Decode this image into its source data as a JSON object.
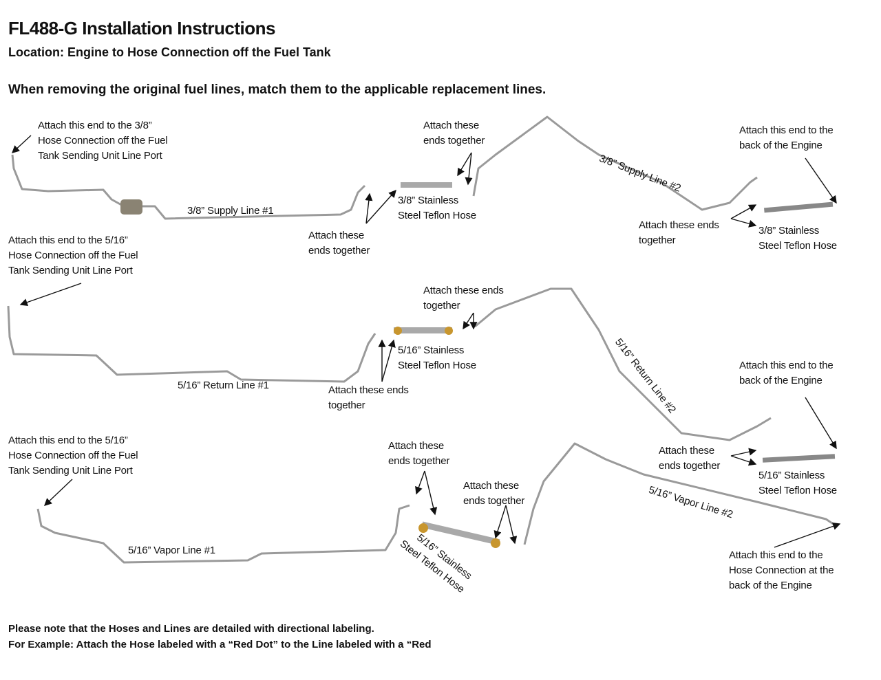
{
  "header": {
    "title": "FL488-G Installation Instructions",
    "location": "Location: Engine to Hose Connection off the Fuel Tank",
    "instruction": "When removing the original fuel lines, match them to the applicable replacement lines."
  },
  "supply": {
    "tank_end": [
      "Attach this end to the 3/8”",
      "Hose Connection off the Fuel",
      "Tank Sending Unit Line Port"
    ],
    "attach_top": [
      "Attach these",
      "ends together"
    ],
    "engine_end": [
      "Attach this end to the",
      "back of the Engine"
    ],
    "line1": "3/8” Supply Line #1",
    "hose1": [
      "3/8” Stainless",
      "Steel Teflon Hose"
    ],
    "line2": "3/8” Supply Line #2",
    "attach_bottom": [
      "Attach these",
      "ends together"
    ],
    "attach_right": [
      "Attach these ends",
      "together"
    ],
    "hose2": [
      "3/8” Stainless",
      "Steel Teflon Hose"
    ]
  },
  "return": {
    "tank_end": [
      "Attach this end to the 5/16”",
      "Hose Connection off the Fuel",
      "Tank Sending Unit Line Port"
    ],
    "attach_top": [
      "Attach these ends",
      "together"
    ],
    "hose1": [
      "5/16” Stainless",
      "Steel Teflon Hose"
    ],
    "line1": "5/16” Return Line #1",
    "attach_bottom": [
      "Attach these ends",
      "together"
    ],
    "line2": "5/16” Return Line #2",
    "engine_end": [
      "Attach this end to the",
      "back of the Engine"
    ]
  },
  "vapor": {
    "tank_end": [
      "Attach this end to the 5/16”",
      "Hose Connection off the Fuel",
      "Tank Sending Unit Line Port"
    ],
    "attach_left": [
      "Attach these",
      "ends together"
    ],
    "attach_mid": [
      "Attach these",
      "ends together"
    ],
    "attach_right": [
      "Attach these",
      "ends together"
    ],
    "hose2": [
      "5/16” Stainless",
      "Steel Teflon Hose"
    ],
    "line2": "5/16” Vapor Line #2",
    "line1": "5/16” Vapor Line #1",
    "hose1": [
      "5/16” Stainless",
      "Steel Teflon Hose"
    ],
    "engine_end": [
      "Attach this end to the",
      "Hose Connection at the",
      "back of the Engine"
    ]
  },
  "footer": {
    "note1": "Please note that the Hoses and Lines are detailed with directional labeling.",
    "note2": "For Example: Attach the Hose labeled with a “Red Dot” to the Line labeled with a “Red"
  },
  "colors": {
    "pipe": "#9a9a9a",
    "fitting_brass": "#c8962e",
    "text": "#111111"
  }
}
